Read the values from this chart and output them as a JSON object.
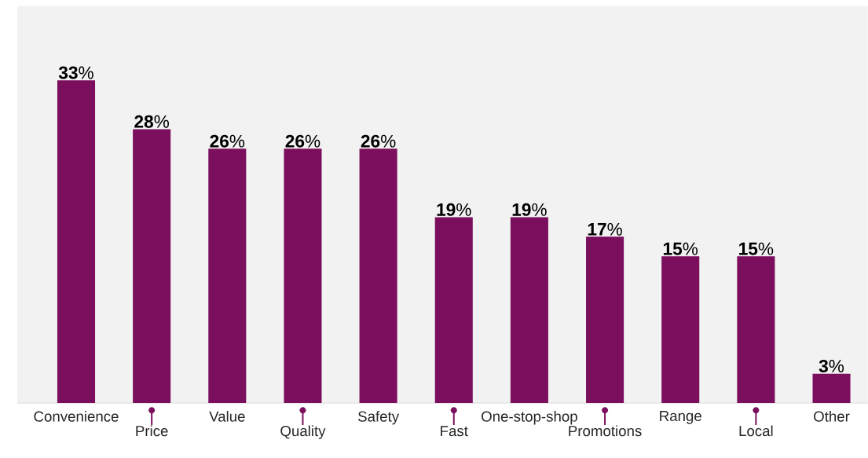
{
  "chart_data": {
    "type": "bar",
    "categories": [
      "Convenience",
      "Price",
      "Value",
      "Quality",
      "Safety",
      "Fast",
      "One-stop-shop",
      "Promotions",
      "Range",
      "Local",
      "Other"
    ],
    "values": [
      33,
      28,
      26,
      26,
      26,
      19,
      19,
      17,
      15,
      15,
      3
    ],
    "value_labels": [
      "**33**%",
      "**28**%",
      "**26**%",
      "**26**%",
      "**26**%",
      "**19**%",
      "**19**%",
      "**17**%",
      "**15**%",
      "**15**%",
      "**3**%"
    ],
    "color": "#7b0f5e"
  }
}
